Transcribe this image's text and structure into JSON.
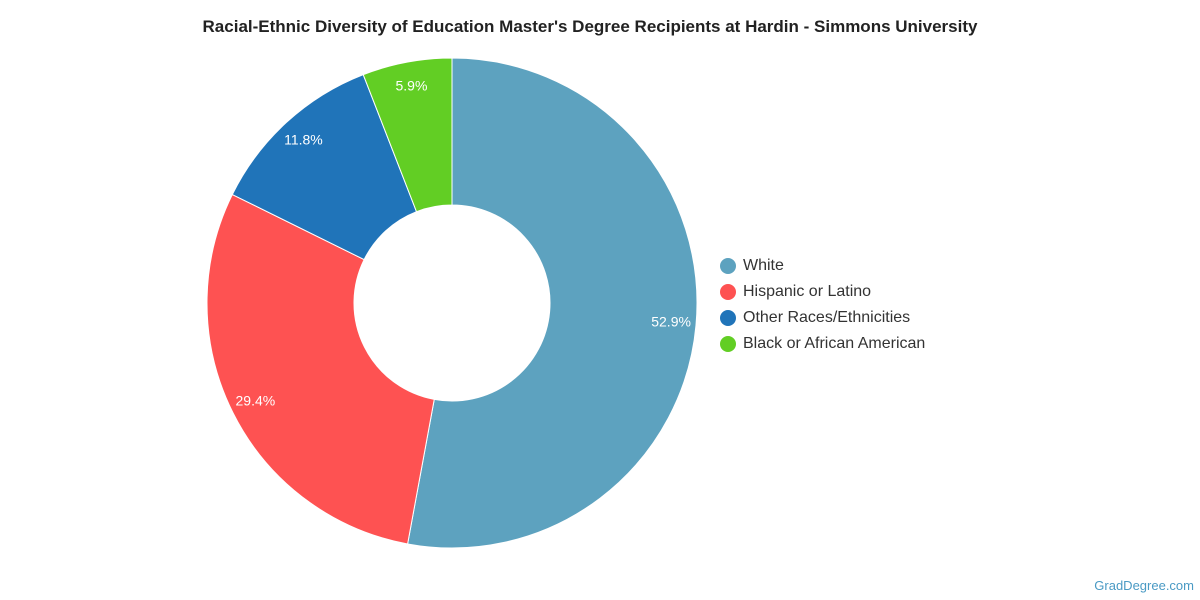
{
  "title": "Racial-Ethnic Diversity of Education Master's Degree Recipients at Hardin - Simmons University",
  "watermark": "GradDegree.com",
  "chart_data": {
    "type": "pie",
    "variant": "donut",
    "title": "Racial-Ethnic Diversity of Education Master's Degree Recipients at Hardin - Simmons University",
    "legend_position": "right",
    "slices": [
      {
        "name": "White",
        "value": 52.9,
        "label": "52.9%",
        "color": "#5da2bf"
      },
      {
        "name": "Hispanic or Latino",
        "value": 29.4,
        "label": "29.4%",
        "color": "#fe5252"
      },
      {
        "name": "Other Races/Ethnicities",
        "value": 11.8,
        "label": "11.8%",
        "color": "#2074b9"
      },
      {
        "name": "Black or African American",
        "value": 5.9,
        "label": "5.9%",
        "color": "#62ce24"
      }
    ]
  }
}
